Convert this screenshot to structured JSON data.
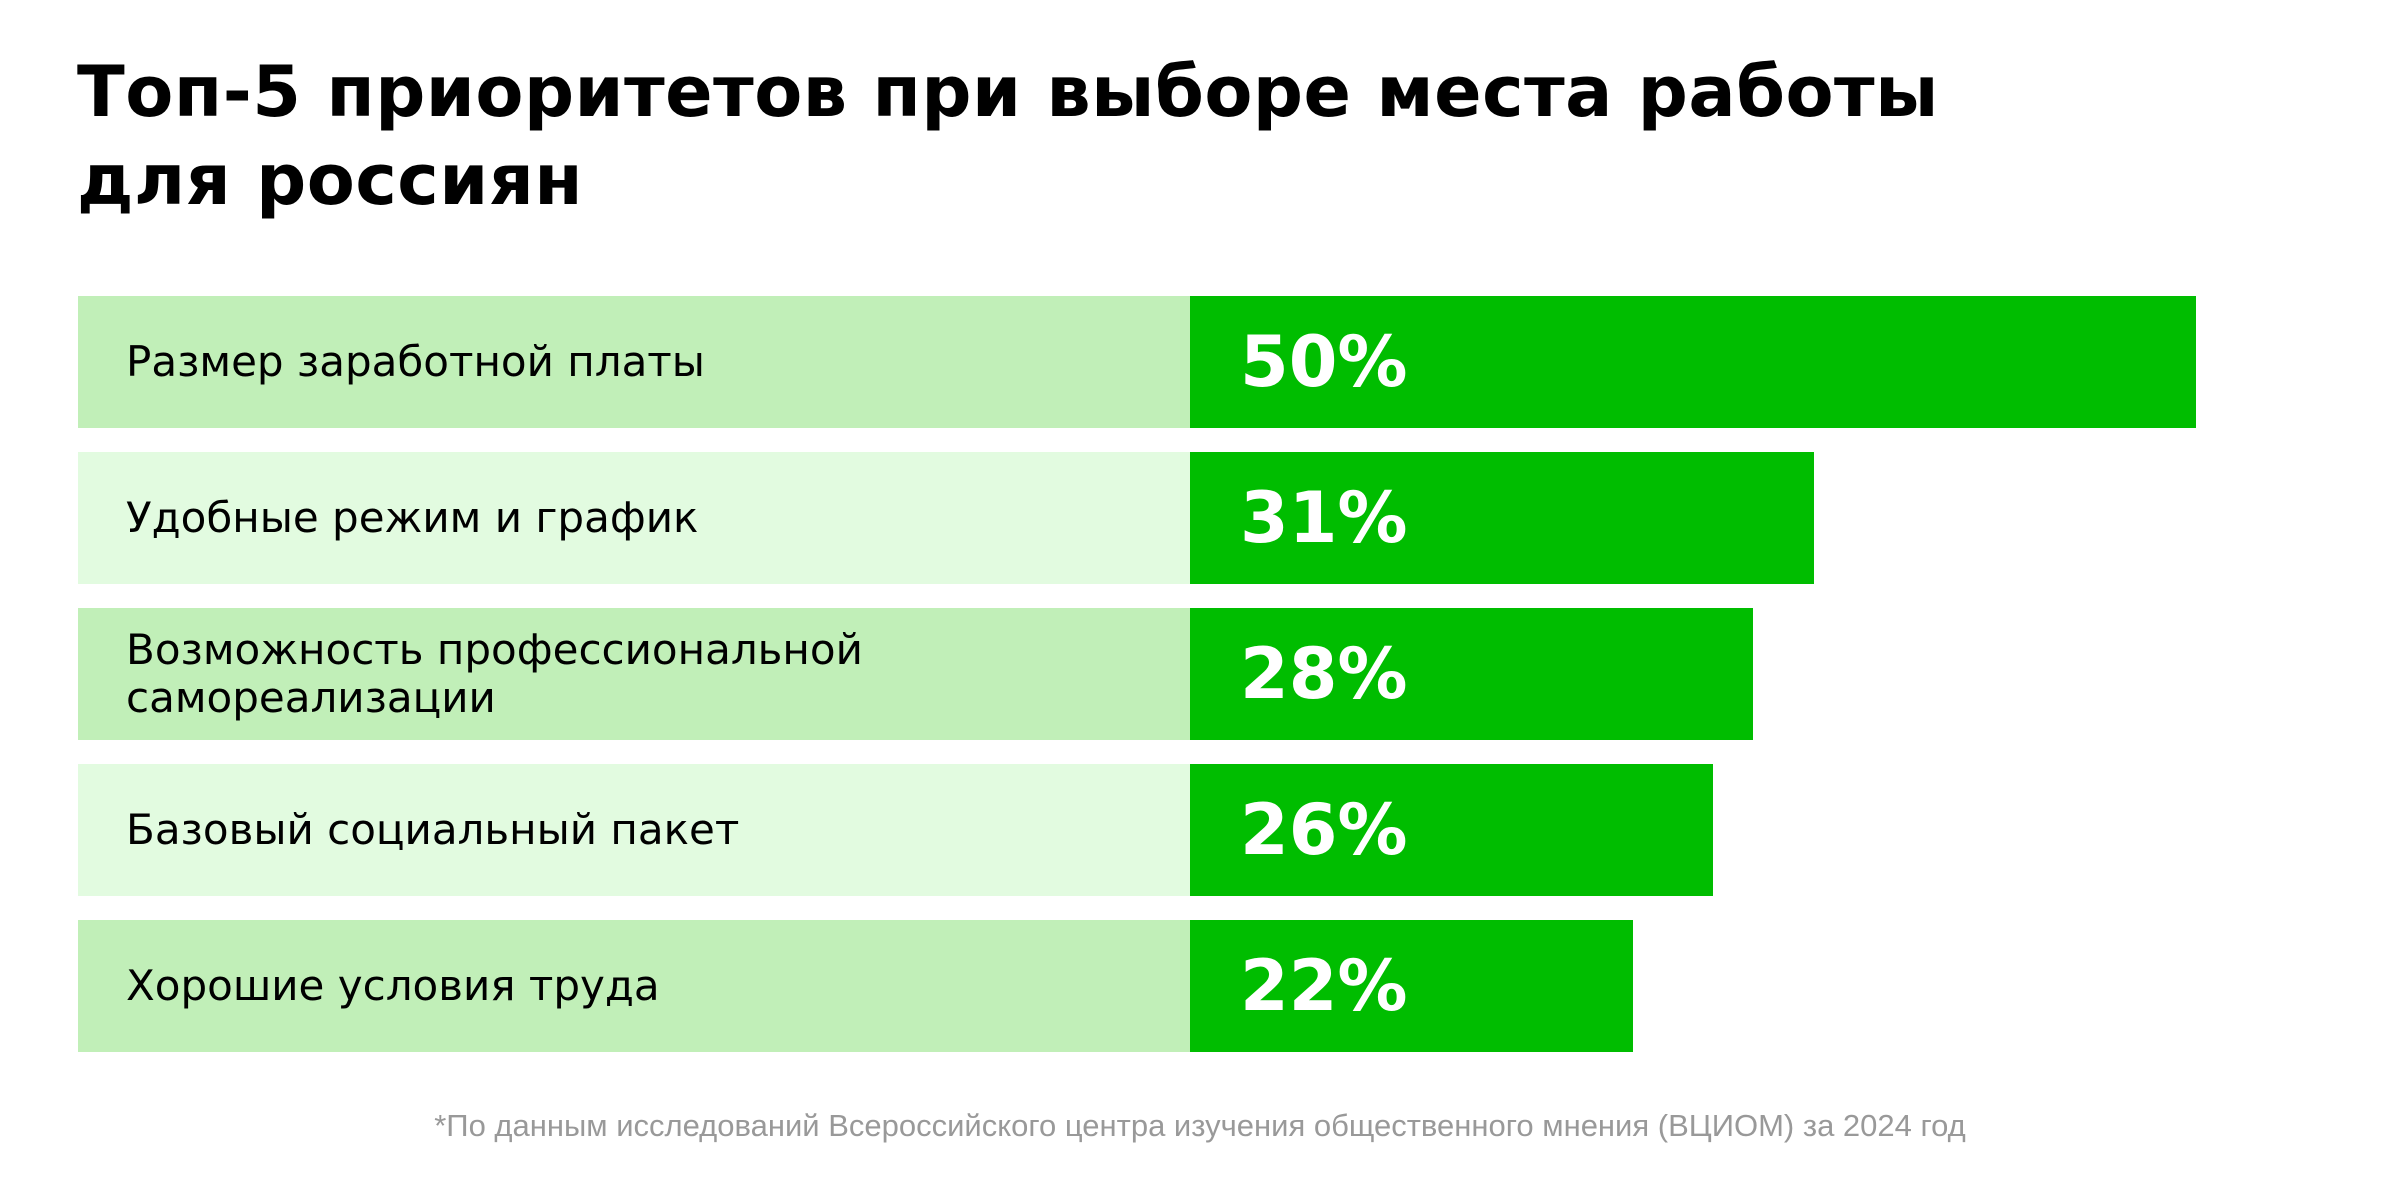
{
  "chart_data": {
    "type": "bar",
    "orientation": "horizontal",
    "title": "Топ-5 приоритетов при выборе места работы для россиян",
    "categories": [
      "Размер заработной платы",
      "Удобные режим и график",
      "Возможность профессиональной самореализации",
      "Базовый социальный пакет",
      "Хорошие условия труда"
    ],
    "values": [
      50,
      31,
      28,
      26,
      22
    ],
    "value_labels": [
      "50%",
      "31%",
      "28%",
      "26%",
      "22%"
    ],
    "unit": "%",
    "footnote": "*По данным исследований Всероссийского центра изучения общественного мнения (ВЦИОМ) за 2024 год",
    "colors": {
      "bar": "#00bd00",
      "label_bg_odd": "#c1efb8",
      "label_bg_even": "#e2fbe0"
    }
  }
}
